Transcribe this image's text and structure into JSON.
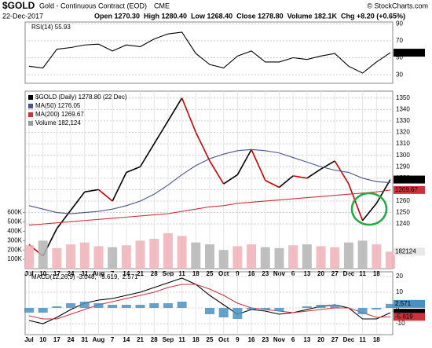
{
  "header": {
    "symbol": "$GOLD",
    "name": "Gold - Continuous Contract (EOD)",
    "exchange": "CME",
    "credit": "© StockCharts.com",
    "date": "22-Dec-2017",
    "quote": "Open 1270.30  High 1280.40  Low 1268.40  Close 1278.80  Volume 182.1K  Chg +8.20 (+0.65%)"
  },
  "chart_data": [
    {
      "type": "line",
      "title": "RSI(14) 55.93",
      "ylim": [
        20,
        92
      ],
      "yticks": [
        30,
        50,
        70,
        90
      ],
      "grid": true,
      "series": [
        {
          "name": "RSI(14) 55.93",
          "color": "#000000",
          "values": [
            40,
            38,
            60,
            62,
            65,
            66,
            58,
            65,
            63,
            72,
            78,
            80,
            55,
            42,
            38,
            52,
            58,
            45,
            45,
            50,
            48,
            52,
            55,
            40,
            32,
            45,
            55.93
          ],
          "value_labels": [
            null,
            null,
            null,
            null,
            null,
            null,
            null,
            null,
            null,
            null,
            null,
            null,
            null,
            null,
            null,
            null,
            null,
            null,
            null,
            null,
            null,
            null,
            null,
            null,
            null,
            null,
            "55.93"
          ]
        }
      ]
    },
    {
      "type": "line",
      "title": "$GOLD (Daily) 1278.80 (22 Dec)",
      "categories": [
        "Jul",
        "10",
        "17",
        "24",
        "31",
        "Aug",
        "7",
        "14",
        "21",
        "28",
        "Sep",
        "11",
        "18",
        "25",
        "Oct",
        "9",
        "16",
        "23",
        "Nov",
        "6",
        "13",
        "20",
        "27",
        "Dec",
        "11",
        "18",
        null
      ],
      "ylim": [
        1201,
        1356
      ],
      "yticks": [
        1240,
        1250,
        1260,
        1270,
        1280,
        1290,
        1300,
        1310,
        1320,
        1330,
        1340,
        1350
      ],
      "grid": true,
      "y2lim": [
        0,
        1900000
      ],
      "y2ticks": [
        {
          "value": 100000,
          "label": "100K"
        },
        {
          "value": 200000,
          "label": "200K"
        },
        {
          "value": 300000,
          "label": "300K"
        },
        {
          "value": 400000,
          "label": "400K"
        },
        {
          "value": 500000,
          "label": "500K"
        },
        {
          "value": 600000,
          "label": "600K"
        }
      ],
      "series": [
        {
          "name": "$GOLD (Daily) 1278.80 (22 Dec)",
          "color": "#000000",
          "down_color": "#cc0000",
          "values": [
            1222,
            1212,
            1236,
            1252,
            1268,
            1270,
            1260,
            1285,
            1290,
            1310,
            1330,
            1350,
            1320,
            1295,
            1275,
            1283,
            1305,
            1278,
            1272,
            1282,
            1280,
            1288,
            1295,
            1275,
            1243,
            1258,
            1278.8
          ],
          "value_labels": [
            null,
            null,
            null,
            null,
            null,
            null,
            null,
            null,
            null,
            null,
            null,
            null,
            null,
            null,
            null,
            null,
            null,
            null,
            null,
            null,
            null,
            null,
            null,
            null,
            null,
            null,
            "1278.80"
          ]
        },
        {
          "name": "MA(50) 1276.05",
          "color": "#4a5590",
          "values": [
            1256,
            1253,
            1250,
            1249,
            1250,
            1251,
            1253,
            1256,
            1260,
            1266,
            1274,
            1283,
            1291,
            1297,
            1301,
            1304,
            1305,
            1304,
            1302,
            1298,
            1294,
            1290,
            1287,
            1285,
            1280,
            1277,
            1276.05
          ]
        },
        {
          "name": "MA(200) 1269.67",
          "color": "#d0303a",
          "values": [
            1239,
            1240,
            1241,
            1242,
            1243,
            1244,
            1245,
            1246,
            1247,
            1248,
            1249,
            1251,
            1253,
            1255,
            1256,
            1258,
            1259,
            1260,
            1261,
            1262,
            1263,
            1264,
            1265,
            1266,
            1267,
            1268,
            1269.67
          ],
          "value_labels": [
            null,
            null,
            null,
            null,
            null,
            null,
            null,
            null,
            null,
            null,
            null,
            null,
            null,
            null,
            null,
            null,
            null,
            null,
            null,
            null,
            null,
            null,
            null,
            null,
            null,
            null,
            "1269.67"
          ]
        },
        {
          "name": "Volume 182,124",
          "type": "bar",
          "axis": "y2",
          "color": "#f0b0b8",
          "down_color": "#b4b4b4",
          "values": [
            250000,
            300000,
            220000,
            260000,
            280000,
            240000,
            230000,
            250000,
            300000,
            320000,
            380000,
            350000,
            280000,
            260000,
            200000,
            240000,
            260000,
            230000,
            220000,
            250000,
            260000,
            240000,
            230000,
            280000,
            300000,
            260000,
            182124
          ],
          "value_labels": [
            null,
            null,
            null,
            null,
            null,
            null,
            null,
            null,
            null,
            null,
            null,
            null,
            null,
            null,
            null,
            null,
            null,
            null,
            null,
            null,
            null,
            null,
            null,
            null,
            null,
            null,
            "182124"
          ]
        }
      ]
    },
    {
      "type": "line",
      "categories": [
        "Jul",
        "10",
        "17",
        "24",
        "31",
        "Aug",
        "7",
        "14",
        "21",
        "28",
        "Sep",
        "11",
        "18",
        "25",
        "Oct",
        "9",
        "16",
        "23",
        "Nov",
        "6",
        "13",
        "20",
        "27",
        "Dec",
        "11",
        "18",
        null
      ],
      "ylim": [
        -17,
        23
      ],
      "yticks": [
        -10,
        0,
        10,
        20
      ],
      "grid": true,
      "series": [
        {
          "name": "MACD(12,26,9) -3.048,",
          "color": "#000000",
          "values": [
            -8,
            -10,
            -6,
            -1,
            3,
            5,
            6,
            8,
            10,
            13,
            16,
            19,
            15,
            8,
            2,
            -4,
            -1,
            -2,
            -4,
            -3,
            -1,
            1,
            2,
            0,
            -7,
            -7,
            -3.048
          ],
          "value_labels": [
            null,
            null,
            null,
            null,
            null,
            null,
            null,
            null,
            null,
            null,
            null,
            null,
            null,
            null,
            null,
            null,
            null,
            null,
            null,
            null,
            null,
            null,
            null,
            null,
            null,
            null,
            "-3.048"
          ]
        },
        {
          "name": "-5.619,",
          "color": "#d0303a",
          "values": [
            -5,
            -7,
            -7,
            -4,
            -1,
            2,
            4,
            6,
            8,
            10,
            13,
            15,
            15,
            12,
            8,
            3,
            0,
            -1,
            -2,
            -3,
            -2,
            -1,
            0,
            0,
            -3,
            -6,
            -5.619
          ],
          "value_labels": [
            null,
            null,
            null,
            null,
            null,
            null,
            null,
            null,
            null,
            null,
            null,
            null,
            null,
            null,
            null,
            null,
            null,
            null,
            null,
            null,
            null,
            null,
            null,
            null,
            null,
            null,
            "-5.619"
          ]
        },
        {
          "name": "2.571",
          "type": "bar",
          "color": "#4a90c0",
          "values": [
            -3,
            -3,
            1,
            3,
            4,
            3,
            2,
            2,
            2,
            3,
            3,
            4,
            0,
            -4,
            -6,
            -7,
            -1,
            -1,
            -2,
            0,
            1,
            2,
            2,
            0,
            -4,
            -1,
            2.571
          ],
          "value_labels": [
            null,
            null,
            null,
            null,
            null,
            null,
            null,
            null,
            null,
            null,
            null,
            null,
            null,
            null,
            null,
            null,
            null,
            null,
            null,
            null,
            null,
            null,
            null,
            null,
            null,
            null,
            "2.571"
          ]
        }
      ]
    }
  ]
}
